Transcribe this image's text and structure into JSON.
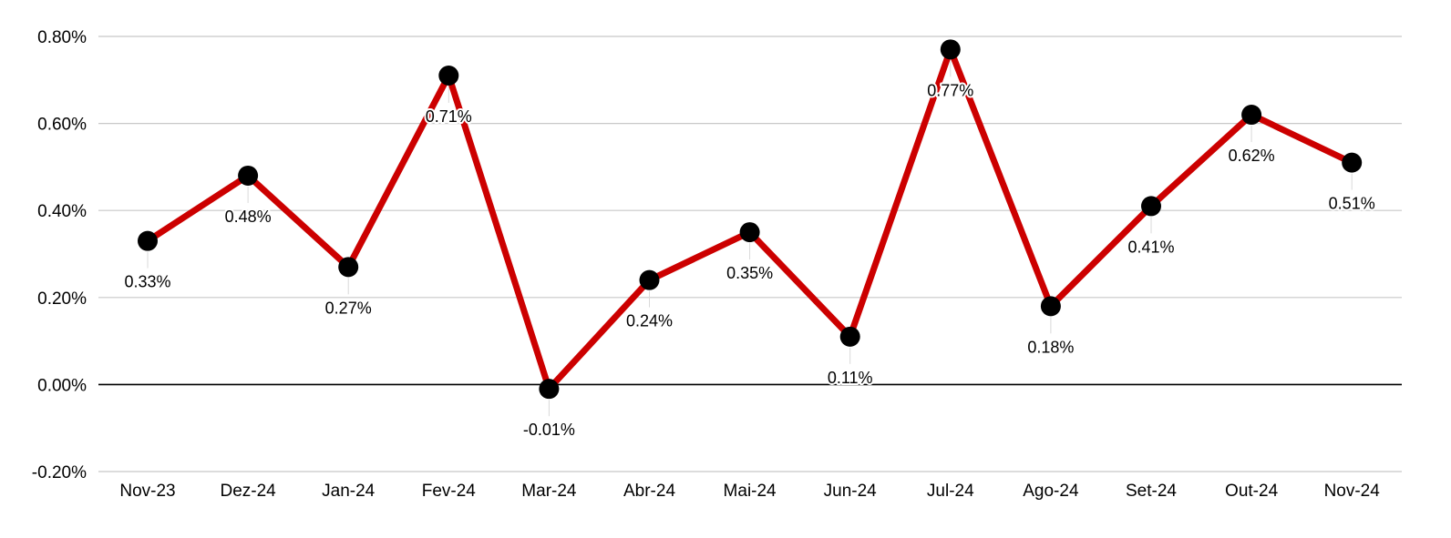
{
  "chart_data": {
    "type": "line",
    "title": "",
    "xlabel": "",
    "ylabel": "",
    "categories": [
      "Nov-23",
      "Dez-24",
      "Jan-24",
      "Fev-24",
      "Mar-24",
      "Abr-24",
      "Mai-24",
      "Jun-24",
      "Jul-24",
      "Ago-24",
      "Set-24",
      "Out-24",
      "Nov-24"
    ],
    "series": [
      {
        "values": [
          0.33,
          0.48,
          0.27,
          0.71,
          -0.01,
          0.24,
          0.35,
          0.11,
          0.77,
          0.18,
          0.41,
          0.62,
          0.51
        ],
        "labels": [
          "0.33%",
          "0.48%",
          "0.27%",
          "0.71%",
          "-0.01%",
          "0.24%",
          "0.35%",
          "0.11%",
          "0.77%",
          "0.18%",
          "0.41%",
          "0.62%",
          "0.51%"
        ],
        "color": "#cc0000",
        "marker_color": "#000000"
      }
    ],
    "y_ticks": [
      0.8,
      0.6,
      0.4,
      0.2,
      0.0,
      -0.2
    ],
    "y_tick_labels": [
      "0.80%",
      "0.60%",
      "0.40%",
      "0.20%",
      "0.00%",
      "-0.20%"
    ],
    "ylim": [
      -0.2,
      0.8
    ],
    "grid": true,
    "legend": "none",
    "colors": {
      "gridline": "#c8c8c8",
      "zero_line": "#000000",
      "text": "#000000"
    }
  }
}
